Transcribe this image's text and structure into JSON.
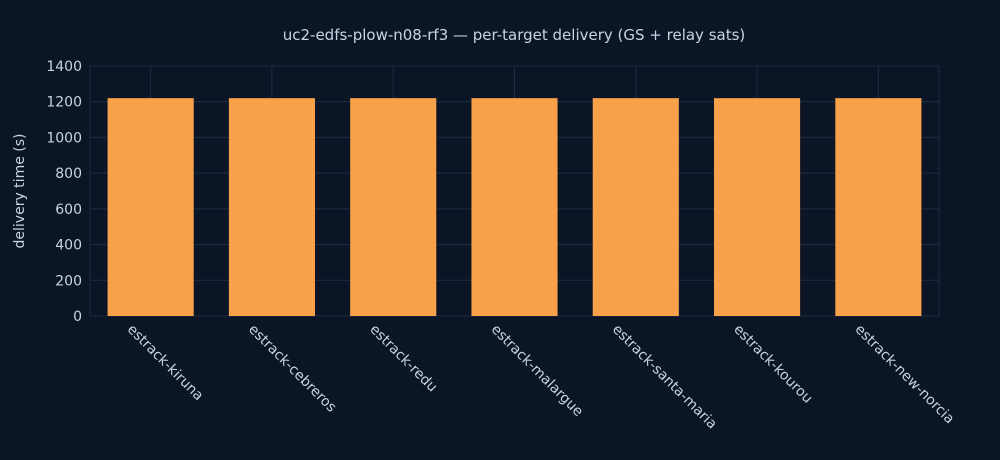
{
  "chart_data": {
    "type": "bar",
    "title": "uc2-edfs-plow-n08-rf3 — per-target delivery (GS + relay sats)",
    "xlabel": "",
    "ylabel": "delivery time (s)",
    "categories": [
      "estrack-kiruna",
      "estrack-cebreros",
      "estrack-redu",
      "estrack-malargue",
      "estrack-santa-maria",
      "estrack-kourou",
      "estrack-new-norcia"
    ],
    "values": [
      1220,
      1220,
      1220,
      1220,
      1220,
      1220,
      1220
    ],
    "ylim": [
      0,
      1400
    ],
    "yticks": [
      0,
      200,
      400,
      600,
      800,
      1000,
      1200,
      1400
    ],
    "grid": true,
    "legend": "none"
  },
  "colors": {
    "background": "#0b1526",
    "bar": "#f7a24a",
    "grid": "#1f2c42",
    "text": "#c9d3e3"
  }
}
